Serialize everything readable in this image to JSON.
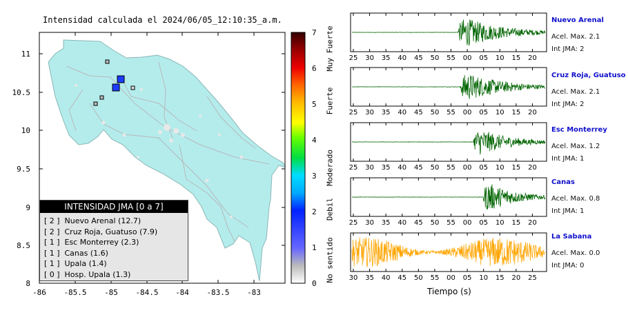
{
  "map": {
    "title": "Intensidad calculada el 2024/06/05_12:10:35_a.m.",
    "x_ticks": [
      "-86",
      "-85.5",
      "-85",
      "-84.5",
      "-84",
      "-83.5",
      "-83"
    ],
    "y_ticks": [
      "11",
      "10.5",
      "10",
      "9.5",
      "9",
      "8.5",
      "8"
    ],
    "land_color": "#b4ecec",
    "legend": {
      "title": "INTENSIDAD JMA [0 a 7]",
      "items": [
        {
          "level": "[ 2 ]",
          "name": "Nuevo Arenal (12.7)"
        },
        {
          "level": "[ 2 ]",
          "name": "Cruz Roja, Guatuso (7.9)"
        },
        {
          "level": "[ 1 ]",
          "name": "Esc Monterrey (2.3)"
        },
        {
          "level": "[ 1 ]",
          "name": "Canas (1.6)"
        },
        {
          "level": "[ 1 ]",
          "name": "Upala (1.4)"
        },
        {
          "level": "[ 0 ]",
          "name": "Hosp. Upala (1.3)"
        }
      ]
    }
  },
  "colorbar": {
    "ticks": [
      "7",
      "6",
      "5",
      "4",
      "3",
      "2",
      "1",
      "0"
    ],
    "labels": [
      "Muy Fuerte",
      "Fuerte",
      "Moderado",
      "Debil",
      "No sentido"
    ]
  },
  "seismograms": {
    "xlabel": "Tiempo (s)",
    "stations": [
      {
        "name": "Nuevo Arenal",
        "acel": "Acel. Max. 2.1",
        "int": "Int JMA: 2",
        "ticks": [
          "25",
          "30",
          "35",
          "40",
          "45",
          "50",
          "55",
          "00",
          "05",
          "10",
          "15",
          "20"
        ],
        "onset": 0.55,
        "amp": 1.0,
        "color": "#006400"
      },
      {
        "name": "Cruz Roja, Guatuso",
        "acel": "Acel. Max. 2.1",
        "int": "Int JMA: 2",
        "ticks": [
          "25",
          "30",
          "35",
          "40",
          "45",
          "50",
          "55",
          "00",
          "05",
          "10",
          "15",
          "20"
        ],
        "onset": 0.56,
        "amp": 0.95,
        "color": "#006400"
      },
      {
        "name": "Esc Monterrey",
        "acel": "Acel. Max. 1.2",
        "int": "Int JMA: 1",
        "ticks": [
          "25",
          "30",
          "35",
          "40",
          "45",
          "50",
          "55",
          "00",
          "05",
          "10",
          "15",
          "20"
        ],
        "onset": 0.63,
        "amp": 0.9,
        "color": "#006400"
      },
      {
        "name": "Canas",
        "acel": "Acel. Max. 0.8",
        "int": "Int JMA: 1",
        "ticks": [
          "25",
          "30",
          "35",
          "40",
          "45",
          "50",
          "55",
          "00",
          "05",
          "10",
          "15",
          "20"
        ],
        "onset": 0.68,
        "amp": 1.0,
        "color": "#006400"
      },
      {
        "name": "La Sabana",
        "acel": "Acel. Max. 0.0",
        "int": "Int JMA: 0",
        "ticks": [
          "30",
          "35",
          "40",
          "45",
          "50",
          "55",
          "00",
          "05",
          "10",
          "15",
          "20",
          "25"
        ],
        "onset": 0.0,
        "amp": 0.85,
        "color": "#ffa500"
      }
    ]
  },
  "chart_data": [
    {
      "type": "scatter",
      "title": "Intensidad calculada el 2024/06/05_12:10:35_a.m.",
      "xlim": [
        -86,
        -82.6
      ],
      "ylim": [
        8,
        11.3
      ],
      "stations": [
        {
          "name": "Nuevo Arenal",
          "lon": -84.87,
          "lat": 10.67,
          "jma": 2
        },
        {
          "name": "Cruz Roja, Guatuso",
          "lon": -84.93,
          "lat": 10.56,
          "jma": 2
        },
        {
          "name": "Esc Monterrey",
          "lon": -85.12,
          "lat": 10.42,
          "jma": 1
        },
        {
          "name": "Canas",
          "lon": -85.13,
          "lat": 10.34,
          "jma": 1
        },
        {
          "name": "Upala",
          "lon": -85.02,
          "lat": 10.9,
          "jma": 1
        },
        {
          "name": "Hosp. Upala",
          "lon": -84.7,
          "lat": 10.56,
          "jma": 0
        }
      ],
      "colorbar": {
        "range": [
          0,
          7
        ],
        "labels": [
          "No sentido",
          "Debil",
          "Moderado",
          "Fuerte",
          "Muy Fuerte"
        ]
      }
    },
    {
      "type": "line",
      "xlabel": "Tiempo (s)",
      "series": [
        {
          "name": "Nuevo Arenal",
          "acel_max": 2.1,
          "int_jma": 2
        },
        {
          "name": "Cruz Roja, Guatuso",
          "acel_max": 2.1,
          "int_jma": 2
        },
        {
          "name": "Esc Monterrey",
          "acel_max": 1.2,
          "int_jma": 1
        },
        {
          "name": "Canas",
          "acel_max": 0.8,
          "int_jma": 1
        },
        {
          "name": "La Sabana",
          "acel_max": 0.0,
          "int_jma": 0
        }
      ]
    }
  ]
}
